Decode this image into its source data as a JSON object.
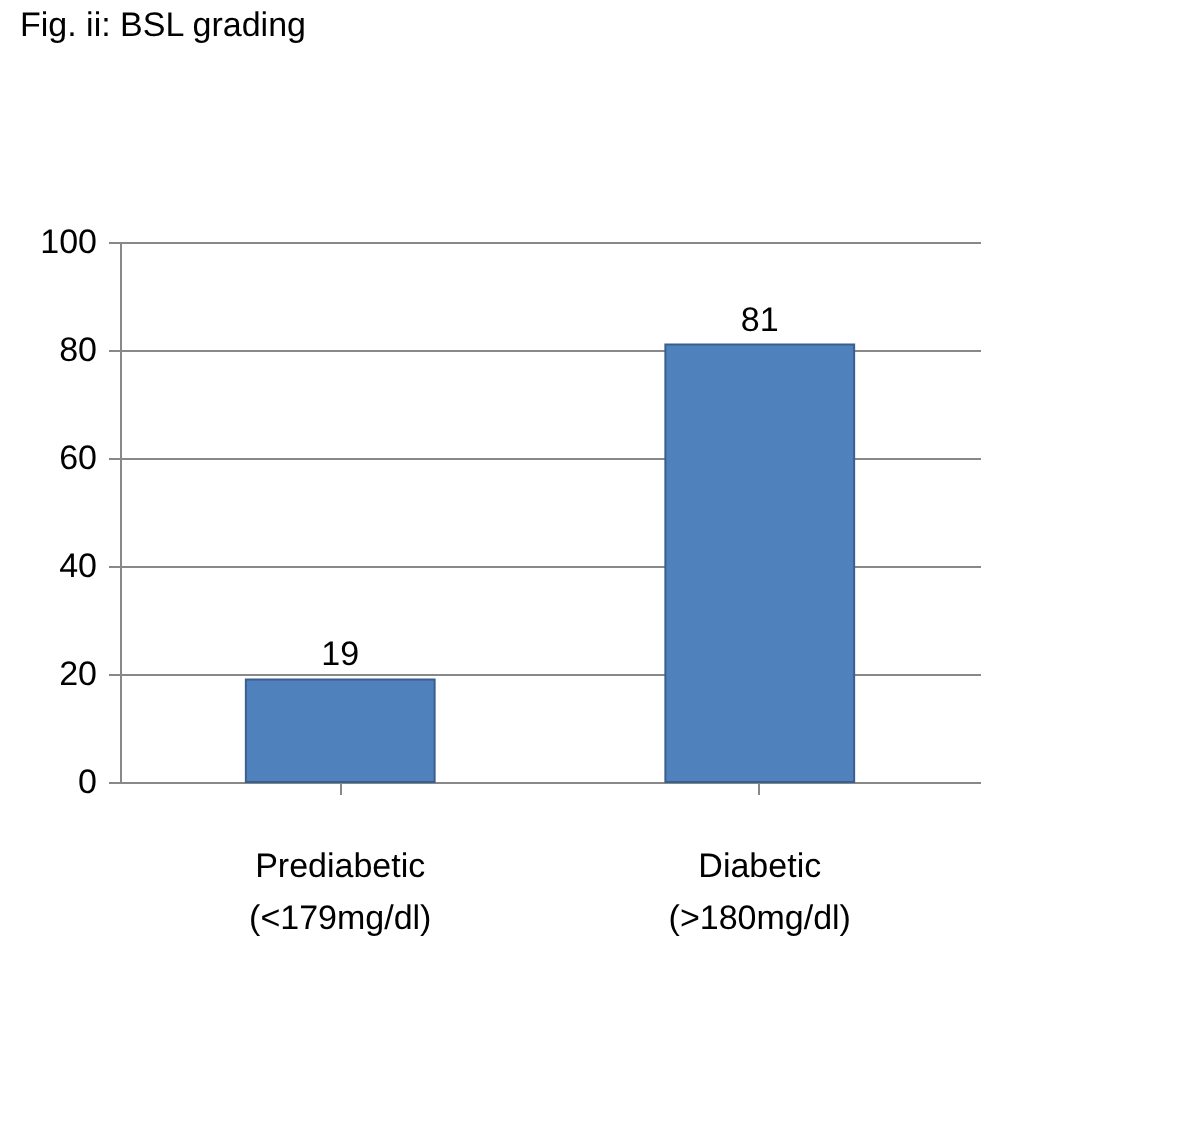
{
  "chart_data": {
    "type": "bar",
    "title": "Fig. ii: BSL grading",
    "categories": [
      "Prediabetic (<179mg/dl)",
      "Diabetic (>180mg/dl)"
    ],
    "values": [
      19,
      81
    ],
    "color": "#4f81bd",
    "ylim": [
      0,
      100
    ],
    "yticks": [
      0,
      20,
      40,
      60,
      80,
      100
    ],
    "grid": "y",
    "data_labels": true
  }
}
